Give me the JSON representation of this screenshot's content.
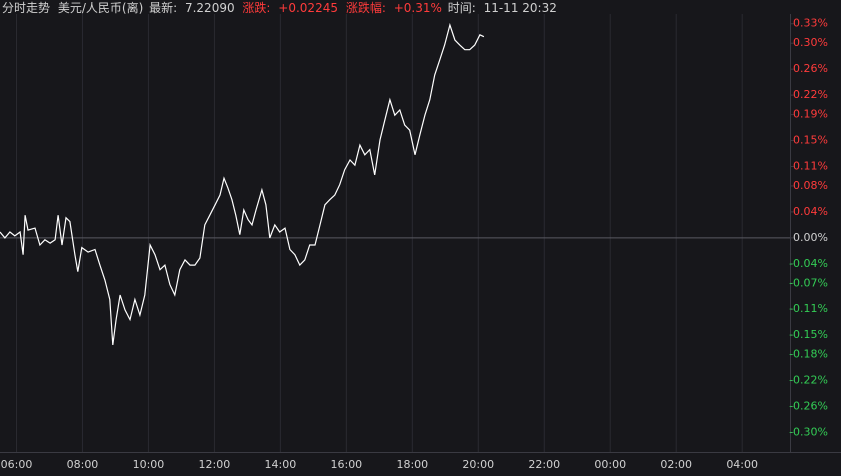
{
  "chart_data": {
    "type": "line",
    "title": "分时走势",
    "header": {
      "symbol": "美元/人民币(离)",
      "latest_label": "最新:",
      "latest": "7.22090",
      "change_label": "涨跌:",
      "change": "+0.02245",
      "change_pct_label": "涨跌幅:",
      "change_pct": "+0.31%",
      "time_label": "时间:",
      "time": "11-11 20:32"
    },
    "text_color": "#d0d0d0",
    "up_color": "#ff3b3b",
    "down_color": "#33cc55",
    "grid": "x",
    "xlim": [
      5.5,
      29.45
    ],
    "xticks": [
      {
        "value": 6,
        "label": "06:00"
      },
      {
        "value": 8,
        "label": "08:00"
      },
      {
        "value": 10,
        "label": "10:00"
      },
      {
        "value": 12,
        "label": "12:00"
      },
      {
        "value": 14,
        "label": "14:00"
      },
      {
        "value": 16,
        "label": "16:00"
      },
      {
        "value": 18,
        "label": "18:00"
      },
      {
        "value": 20,
        "label": "20:00"
      },
      {
        "value": 22,
        "label": "22:00"
      },
      {
        "value": 24,
        "label": "00:00"
      },
      {
        "value": 26,
        "label": "02:00"
      },
      {
        "value": 28,
        "label": "04:00"
      }
    ],
    "ylim": [
      -0.33,
      0.345
    ],
    "yticks": [
      {
        "value": 0.33,
        "label": "0.33%"
      },
      {
        "value": 0.3,
        "label": "0.30%"
      },
      {
        "value": 0.26,
        "label": "0.26%"
      },
      {
        "value": 0.22,
        "label": "0.22%"
      },
      {
        "value": 0.19,
        "label": "0.19%"
      },
      {
        "value": 0.15,
        "label": "0.15%"
      },
      {
        "value": 0.11,
        "label": "0.11%"
      },
      {
        "value": 0.08,
        "label": "0.08%"
      },
      {
        "value": 0.04,
        "label": "0.04%"
      },
      {
        "value": 0,
        "label": "0.00%"
      },
      {
        "value": -0.04,
        "label": "-0.04%"
      },
      {
        "value": -0.07,
        "label": "-0.07%"
      },
      {
        "value": -0.11,
        "label": "-0.11%"
      },
      {
        "value": -0.15,
        "label": "-0.15%"
      },
      {
        "value": -0.18,
        "label": "-0.18%"
      },
      {
        "value": -0.22,
        "label": "-0.22%"
      },
      {
        "value": -0.26,
        "label": "-0.26%"
      },
      {
        "value": -0.3,
        "label": "-0.30%"
      }
    ],
    "series": [
      {
        "color": "#ffffff",
        "x": [
          5.5,
          5.65,
          5.8,
          5.95,
          6.11,
          6.2,
          6.26,
          6.35,
          6.56,
          6.71,
          6.86,
          7.02,
          7.17,
          7.26,
          7.38,
          7.5,
          7.62,
          7.77,
          7.86,
          7.98,
          8.17,
          8.38,
          8.53,
          8.68,
          8.83,
          8.92,
          9.02,
          9.14,
          9.29,
          9.44,
          9.59,
          9.74,
          9.89,
          10.05,
          10.2,
          10.35,
          10.5,
          10.65,
          10.8,
          10.95,
          11.11,
          11.26,
          11.41,
          11.56,
          11.71,
          11.86,
          12.02,
          12.17,
          12.29,
          12.41,
          12.53,
          12.65,
          12.77,
          12.89,
          13.02,
          13.14,
          13.26,
          13.44,
          13.56,
          13.68,
          13.83,
          13.98,
          14.14,
          14.29,
          14.44,
          14.59,
          14.74,
          14.89,
          15.05,
          15.2,
          15.35,
          15.5,
          15.65,
          15.8,
          15.95,
          16.11,
          16.26,
          16.41,
          16.56,
          16.71,
          16.86,
          17.02,
          17.17,
          17.32,
          17.47,
          17.62,
          17.77,
          17.92,
          18.08,
          18.23,
          18.38,
          18.53,
          18.68,
          18.83,
          18.98,
          19.14,
          19.29,
          19.44,
          19.59,
          19.74,
          19.89,
          20.05,
          20.17
        ],
        "values": [
          0.009,
          0,
          0.009,
          0.003,
          0.009,
          -0.026,
          0.035,
          0.012,
          0.015,
          -0.011,
          -0.003,
          -0.008,
          -0.003,
          0.035,
          -0.011,
          0.031,
          0.025,
          -0.026,
          -0.052,
          -0.015,
          -0.022,
          -0.018,
          -0.042,
          -0.065,
          -0.095,
          -0.165,
          -0.126,
          -0.088,
          -0.111,
          -0.126,
          -0.095,
          -0.119,
          -0.088,
          -0.011,
          -0.026,
          -0.049,
          -0.042,
          -0.072,
          -0.088,
          -0.049,
          -0.034,
          -0.042,
          -0.042,
          -0.031,
          0.02,
          0.035,
          0.051,
          0.066,
          0.092,
          0.077,
          0.059,
          0.035,
          0.005,
          0.043,
          0.028,
          0.02,
          0.043,
          0.074,
          0.051,
          0,
          0.02,
          0.009,
          0.015,
          -0.018,
          -0.026,
          -0.042,
          -0.034,
          -0.011,
          -0.011,
          0.02,
          0.051,
          0.059,
          0.066,
          0.082,
          0.105,
          0.12,
          0.112,
          0.143,
          0.128,
          0.136,
          0.097,
          0.151,
          0.182,
          0.213,
          0.189,
          0.197,
          0.174,
          0.166,
          0.128,
          0.159,
          0.189,
          0.213,
          0.251,
          0.274,
          0.297,
          0.328,
          0.305,
          0.297,
          0.29,
          0.29,
          0.297,
          0.313,
          0.31
        ]
      }
    ]
  }
}
